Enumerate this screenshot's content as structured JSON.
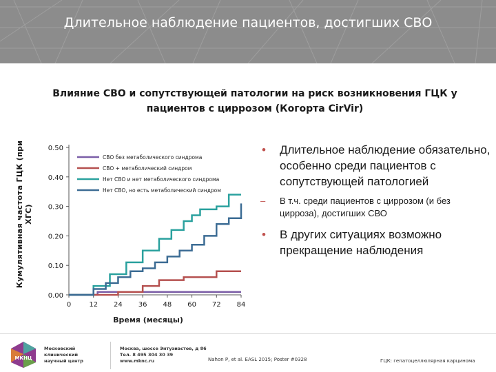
{
  "header": {
    "title": "Длительное наблюдение пациентов, достигших СВО"
  },
  "subtitle": "Влияние СВО и сопутствующей патологии на риск возникновения ГЦК у пациентов с циррозом (Когорта CirVir)",
  "chart_data": {
    "type": "line",
    "xlabel": "Время (месяцы)",
    "ylabel": "Кумулятивная частота ГЦК (при ХГС)",
    "xlim": [
      0,
      84
    ],
    "ylim": [
      0,
      0.5
    ],
    "x_ticks": [
      "0",
      "12",
      "24",
      "36",
      "48",
      "60",
      "72",
      "84"
    ],
    "y_ticks": [
      "0.00",
      "0.10",
      "0.20",
      "0.30",
      "0.40",
      "0.50"
    ],
    "legend_position": "top-left",
    "series": [
      {
        "name": "СВО без метаболического синдрома",
        "color": "#7b5ea7",
        "x": [
          0,
          10,
          14,
          84
        ],
        "y": [
          0,
          0,
          0.01,
          0.01
        ]
      },
      {
        "name": "СВО + метаболический синдром",
        "color": "#b5504f",
        "x": [
          0,
          12,
          24,
          36,
          44,
          56,
          72,
          84
        ],
        "y": [
          0,
          0,
          0.01,
          0.03,
          0.05,
          0.06,
          0.08,
          0.08
        ]
      },
      {
        "name": "Нет СВО и нет метаболического синдрома",
        "color": "#2aa19e",
        "x": [
          0,
          6,
          12,
          20,
          28,
          36,
          44,
          50,
          56,
          60,
          64,
          72,
          78,
          84
        ],
        "y": [
          0,
          0,
          0.03,
          0.07,
          0.11,
          0.15,
          0.19,
          0.22,
          0.25,
          0.27,
          0.29,
          0.3,
          0.34,
          0.34
        ]
      },
      {
        "name": "Нет СВО, но есть метаболический синдром",
        "color": "#3c6c94",
        "x": [
          0,
          6,
          12,
          18,
          24,
          30,
          36,
          42,
          48,
          54,
          60,
          66,
          72,
          78,
          84
        ],
        "y": [
          0,
          0,
          0.02,
          0.04,
          0.06,
          0.08,
          0.09,
          0.11,
          0.13,
          0.15,
          0.17,
          0.2,
          0.24,
          0.26,
          0.31
        ]
      }
    ]
  },
  "bullets": {
    "b1": "Длительное наблюдение обязательно, особенно среди пациентов с сопутствующей патологией",
    "b2": "В т.ч. среди пациентов с циррозом (и без цирроза), достигших СВО",
    "b3": "В других ситуациях возможно прекращение наблюдения",
    "dot": "•",
    "dash": "–"
  },
  "footer": {
    "logo_text": "МКНЦ",
    "org_line1": "Московский",
    "org_line2": "клинический",
    "org_line3": "научный центр",
    "addr_line1": "Москва, шоссе Энтузиастов, д 86",
    "addr_line2": "Тел. 8 495 304 30 39",
    "addr_line3": "www.mknc.ru",
    "reference": "Nahon P, et al. EASL 2015; Poster #0328",
    "abbreviation": "ГЦК: гепатоцеллюлярная карцинома"
  }
}
